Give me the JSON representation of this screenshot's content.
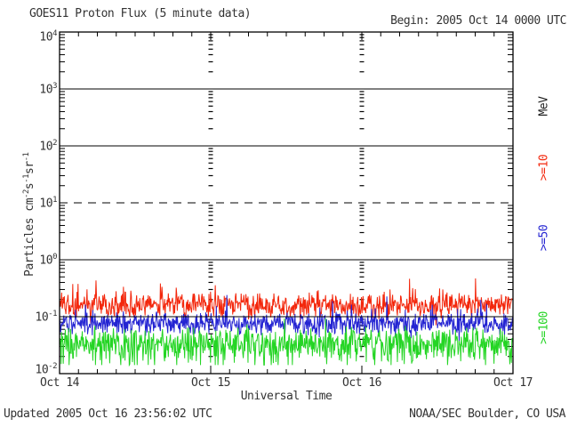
{
  "header": {
    "title": "GOES11 Proton Flux (5 minute data)",
    "begin_label": "Begin: 2005 Oct 14 0000 UTC"
  },
  "footer": {
    "updated": "Updated 2005 Oct 16 23:56:02 UTC",
    "org": "NOAA/SEC Boulder, CO USA"
  },
  "axis": {
    "xlabel": "Universal Time",
    "ylabel_parts": {
      "prefix": "Particles cm",
      "sup1": "-2",
      "mid1": "s",
      "sup2": "-1",
      "mid2": "sr",
      "sup3": "-1"
    }
  },
  "right_axis_labels": [
    {
      "text": "MeV",
      "color": "#222222"
    },
    {
      "text": ">=10",
      "color": "#f3270c"
    },
    {
      "text": ">=50",
      "color": "#2424d2"
    },
    {
      "text": ">=100",
      "color": "#24d524"
    }
  ],
  "chart_data": {
    "type": "line",
    "title": "GOES11 Proton Flux (5 minute data)",
    "begin": "2005 Oct 14 0000 UTC",
    "cadence_minutes": 5,
    "xlabel": "Universal Time",
    "ylabel": "Particles cm-2 s-1 sr-1",
    "y_scale": "log10",
    "ylim_log10": [
      -2,
      4
    ],
    "y_tick_exponents": [
      4,
      3,
      2,
      1,
      0,
      -1,
      -2
    ],
    "x_tick_labels": [
      "Oct 14",
      "Oct 15",
      "Oct 16",
      "Oct 17"
    ],
    "x_days_span": 3,
    "x_minor_ticks_per_day": 8,
    "grid": {
      "solid_exponents_behind_data": [
        3,
        2
      ],
      "solid_exponents_over_data": [
        0,
        -1
      ],
      "dashed_exponents": [
        1
      ],
      "interior_day_guide_indices": [
        1,
        2
      ]
    },
    "legend_unit": "MeV",
    "samples_per_series": 860,
    "series": [
      {
        "name": ">=10 MeV",
        "label": ">=10",
        "color": "#f3270c",
        "seed": 20051014,
        "mean_log10": -0.8,
        "sigma_log10": 0.12,
        "spike_prob": 0.1,
        "spike_max_log10": 0.38,
        "dip_prob": 0.06,
        "dip_max_log10": 0.22,
        "min_log10": -1.15,
        "typical_flux_range": [
          0.08,
          0.45
        ]
      },
      {
        "name": ">=50 MeV",
        "label": ">=50",
        "color": "#2424d2",
        "seed": 20051050,
        "mean_log10": -1.12,
        "sigma_log10": 0.11,
        "spike_prob": 0.08,
        "spike_max_log10": 0.33,
        "dip_prob": 0.08,
        "dip_max_log10": 0.22,
        "min_log10": -1.45,
        "typical_flux_range": [
          0.04,
          0.2
        ]
      },
      {
        "name": ">=100 MeV",
        "label": ">=100",
        "color": "#24d524",
        "seed": 20051100,
        "mean_log10": -1.44,
        "sigma_log10": 0.14,
        "spike_prob": 0.05,
        "spike_max_log10": 0.28,
        "dip_prob": 0.3,
        "dip_max_log10": 0.4,
        "min_log10": -1.85,
        "typical_flux_range": [
          0.014,
          0.09
        ]
      }
    ]
  }
}
